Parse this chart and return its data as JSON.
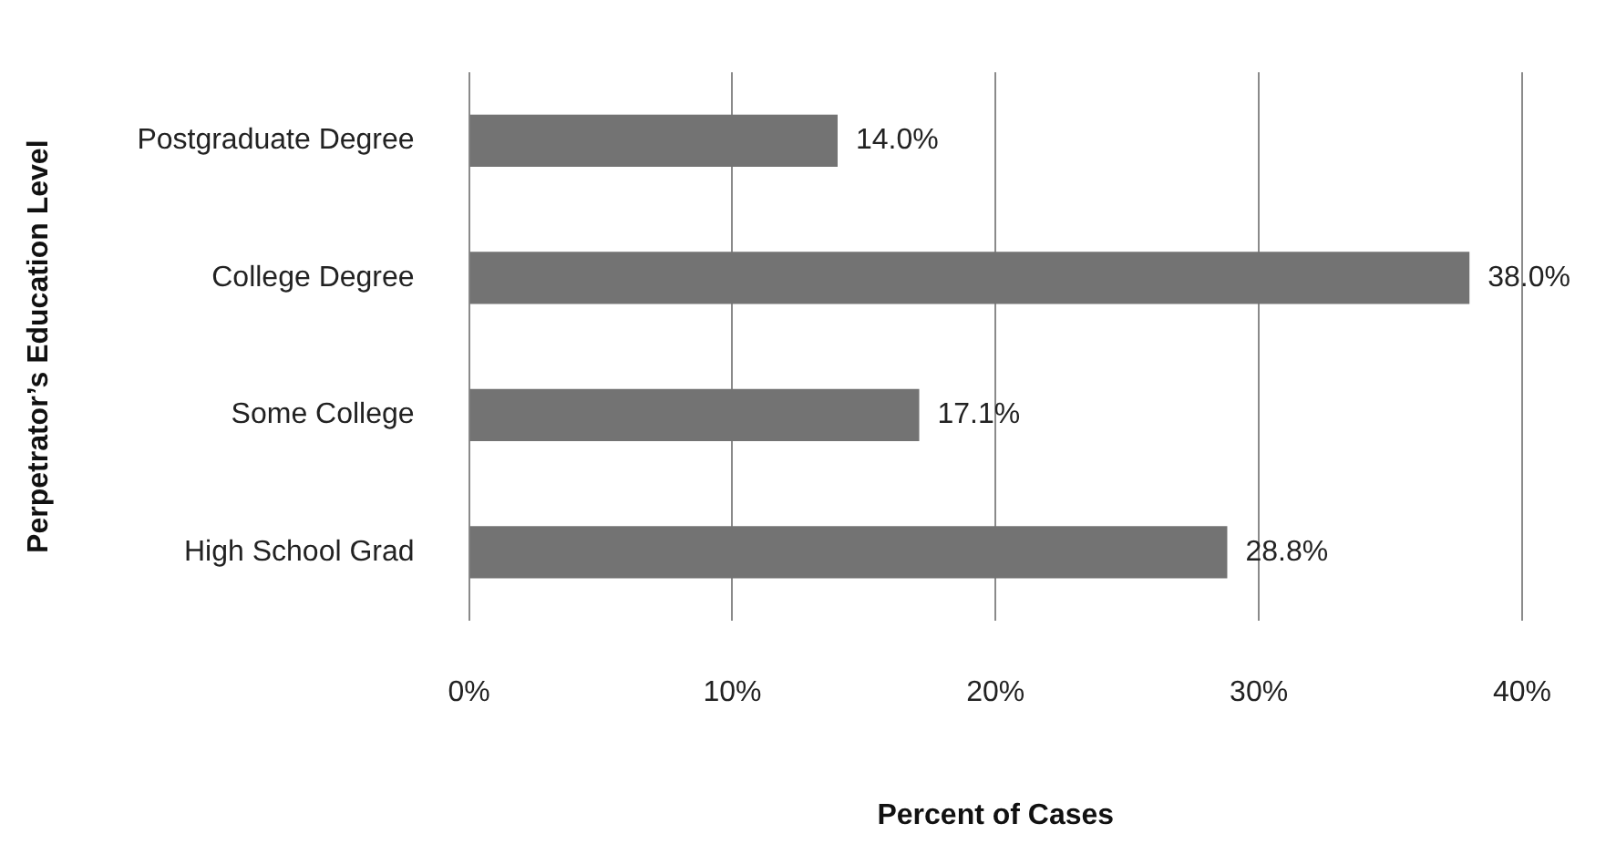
{
  "chart_data": {
    "type": "bar",
    "orientation": "horizontal",
    "xlabel": "Percent of Cases",
    "ylabel": "Perpetrator’s Education Level",
    "categories": [
      "Postgraduate Degree",
      "College Degree",
      "Some College",
      "High School Grad"
    ],
    "values": [
      14.0,
      38.0,
      17.1,
      28.8
    ],
    "value_labels": [
      "14.0%",
      "38.0%",
      "17.1%",
      "28.8%"
    ],
    "color": "#737373",
    "xlim": [
      0,
      40
    ],
    "xticks": [
      {
        "value": 0,
        "label": "0%"
      },
      {
        "value": 10,
        "label": "10%"
      },
      {
        "value": 20,
        "label": "20%"
      },
      {
        "value": 30,
        "label": "30%"
      },
      {
        "value": 40,
        "label": "40%"
      }
    ],
    "grid": "x",
    "legend": false
  }
}
